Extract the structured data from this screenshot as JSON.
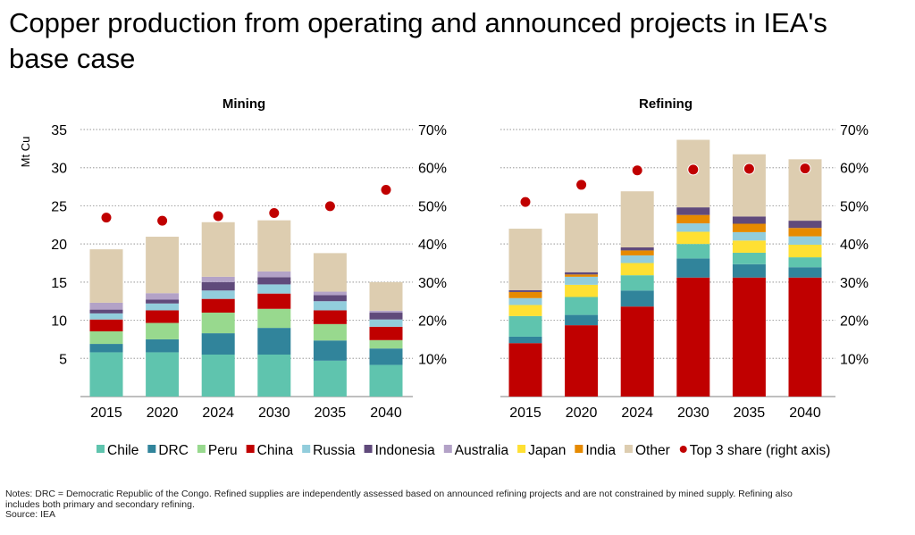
{
  "title": "Copper production from operating and announced projects in IEA's base case",
  "notes": {
    "line1": "Notes: DRC = Democratic Republic of the Congo. Refined supplies are independently assessed based on announced refining projects and are not constrained by mined supply. Refining also includes both primary and secondary refining.",
    "source": "Source: IEA"
  },
  "legend": [
    {
      "name": "Chile",
      "color": "#5fc4ae"
    },
    {
      "name": "DRC",
      "color": "#31849b"
    },
    {
      "name": "Peru",
      "color": "#98d98e"
    },
    {
      "name": "China",
      "color": "#c00000"
    },
    {
      "name": "Russia",
      "color": "#92cddc"
    },
    {
      "name": "Indonesia",
      "color": "#604a7b"
    },
    {
      "name": "Australia",
      "color": "#b3a2c7"
    },
    {
      "name": "Japan",
      "color": "#ffe033"
    },
    {
      "name": "India",
      "color": "#e68a00"
    },
    {
      "name": "Other",
      "color": "#ddcdb0"
    },
    {
      "name": "Top 3 share (right axis)",
      "color": "#c00000",
      "marker": "dot"
    }
  ],
  "chart_data": [
    {
      "type": "bar",
      "stacked": true,
      "title": "Mining",
      "ylabel": "Mt Cu",
      "ylim": [
        0,
        35
      ],
      "yticks": [
        "5",
        "10",
        "15",
        "20",
        "25",
        "30",
        "35"
      ],
      "y2lim": [
        0,
        70
      ],
      "y2ticks": [
        "10%",
        "20%",
        "30%",
        "40%",
        "50%",
        "60%",
        "70%"
      ],
      "grid": true,
      "categories": [
        "2015",
        "2020",
        "2024",
        "2030",
        "2035",
        "2040"
      ],
      "series": [
        {
          "name": "Chile",
          "values": [
            5.8,
            5.8,
            5.5,
            5.5,
            4.7,
            4.15
          ]
        },
        {
          "name": "DRC",
          "values": [
            1.1,
            1.7,
            2.8,
            3.5,
            2.65,
            2.15
          ]
        },
        {
          "name": "Peru",
          "values": [
            1.65,
            2.15,
            2.7,
            2.5,
            2.15,
            1.1
          ]
        },
        {
          "name": "China",
          "values": [
            1.55,
            1.65,
            1.8,
            2.0,
            1.8,
            1.75
          ]
        },
        {
          "name": "Russia",
          "values": [
            0.8,
            0.9,
            1.1,
            1.2,
            1.2,
            0.95
          ]
        },
        {
          "name": "Indonesia",
          "values": [
            0.5,
            0.5,
            1.1,
            0.95,
            0.8,
            0.9
          ]
        },
        {
          "name": "Australia",
          "values": [
            0.9,
            0.85,
            0.7,
            0.75,
            0.45,
            0.25
          ]
        },
        {
          "name": "Other",
          "values": [
            7.0,
            7.4,
            7.15,
            6.7,
            5.05,
            3.75
          ]
        }
      ],
      "line_series": {
        "name": "Top 3 share (right axis)",
        "axis": "right",
        "values_percent": [
          46.9,
          46.1,
          47.3,
          48.1,
          49.9,
          54.2
        ]
      }
    },
    {
      "type": "bar",
      "stacked": true,
      "title": "Refining",
      "ylim": [
        0,
        35
      ],
      "y2lim": [
        0,
        70
      ],
      "y2ticks": [
        "10%",
        "20%",
        "30%",
        "40%",
        "50%",
        "60%",
        "70%"
      ],
      "grid": true,
      "categories": [
        "2015",
        "2020",
        "2024",
        "2030",
        "2035",
        "2040"
      ],
      "series": [
        {
          "name": "China",
          "values": [
            7.0,
            9.35,
            11.8,
            15.6,
            15.6,
            15.6
          ]
        },
        {
          "name": "DRC",
          "values": [
            0.85,
            1.35,
            2.1,
            2.5,
            1.75,
            1.35
          ]
        },
        {
          "name": "Chile",
          "values": [
            2.7,
            2.35,
            2.0,
            1.9,
            1.5,
            1.3
          ]
        },
        {
          "name": "Japan",
          "values": [
            1.45,
            1.6,
            1.6,
            1.6,
            1.6,
            1.65
          ]
        },
        {
          "name": "Russia",
          "values": [
            0.9,
            1.05,
            1.0,
            1.1,
            1.1,
            1.1
          ]
        },
        {
          "name": "India",
          "values": [
            0.8,
            0.3,
            0.65,
            1.1,
            1.1,
            1.1
          ]
        },
        {
          "name": "Indonesia",
          "values": [
            0.25,
            0.3,
            0.4,
            1.0,
            0.95,
            0.95
          ]
        },
        {
          "name": "Other",
          "values": [
            8.05,
            7.7,
            7.35,
            8.85,
            8.15,
            8.05
          ]
        }
      ],
      "line_series": {
        "name": "Top 3 share (right axis)",
        "axis": "right",
        "values_percent": [
          51.0,
          55.5,
          59.3,
          59.5,
          59.7,
          59.8
        ]
      }
    }
  ]
}
